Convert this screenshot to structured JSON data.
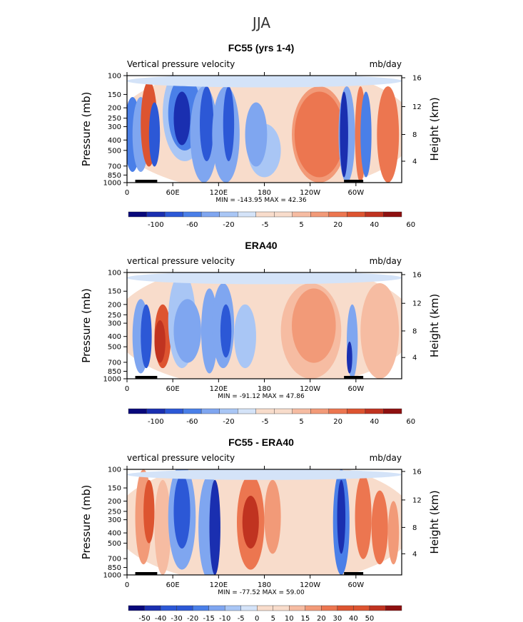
{
  "figure_title": "JJA",
  "colors": {
    "scale": [
      "#08087a",
      "#1a2fb0",
      "#2c58d6",
      "#4a7fe8",
      "#7fa6f0",
      "#a9c6f5",
      "#d4e3f8",
      "#f8dccb",
      "#f6bca2",
      "#f29a78",
      "#ec7650",
      "#dd5430",
      "#c03320",
      "#8e1010"
    ]
  },
  "chart_data": [
    {
      "type": "heatmap",
      "title": "FC55 (yrs 1-4)",
      "variable": "Vertical pressure velocity",
      "units": "mb/day",
      "ylabel": "Pressure (mb)",
      "ylabel_right": "Height (km)",
      "x_ticks": [
        "0",
        "60E",
        "120E",
        "180",
        "120W",
        "60W"
      ],
      "y_ticks": [
        "100",
        "150",
        "200",
        "250",
        "300",
        "400",
        "500",
        "700",
        "850",
        "1000"
      ],
      "height_ticks": [
        "16",
        "12",
        "8",
        "4"
      ],
      "stats": "MIN = -143.95   MAX =  42.36",
      "colorbar_labels": [
        "-100",
        "-60",
        "-20",
        "-5",
        "5",
        "20",
        "40",
        "60"
      ]
    },
    {
      "type": "heatmap",
      "title": "ERA40",
      "variable": "vertical pressure velocity",
      "units": "mb/day",
      "ylabel": "Pressure (mb)",
      "ylabel_right": "Height (km)",
      "x_ticks": [
        "0",
        "60E",
        "120E",
        "180",
        "120W",
        "60W"
      ],
      "y_ticks": [
        "100",
        "150",
        "200",
        "250",
        "300",
        "400",
        "500",
        "700",
        "850",
        "1000"
      ],
      "height_ticks": [
        "16",
        "12",
        "8",
        "4"
      ],
      "stats": "MIN = -91.12   MAX =  47.86",
      "colorbar_labels": [
        "-100",
        "-60",
        "-20",
        "-5",
        "5",
        "20",
        "40",
        "60"
      ]
    },
    {
      "type": "heatmap",
      "title": "FC55 - ERA40",
      "variable": "vertical pressure velocity",
      "units": "mb/day",
      "ylabel": "Pressure (mb)",
      "ylabel_right": "Height (km)",
      "x_ticks": [
        "0",
        "60E",
        "120E",
        "180",
        "120W",
        "60W"
      ],
      "y_ticks": [
        "100",
        "150",
        "200",
        "250",
        "300",
        "400",
        "500",
        "700",
        "850",
        "1000"
      ],
      "height_ticks": [
        "16",
        "12",
        "8",
        "4"
      ],
      "stats": "MIN = -77.52   MAX =  59.00",
      "colorbar_labels": [
        "-50",
        "-40",
        "-30",
        "-20",
        "-15",
        "-10",
        "-5",
        "0",
        "5",
        "10",
        "15",
        "20",
        "30",
        "40",
        "50"
      ]
    }
  ]
}
